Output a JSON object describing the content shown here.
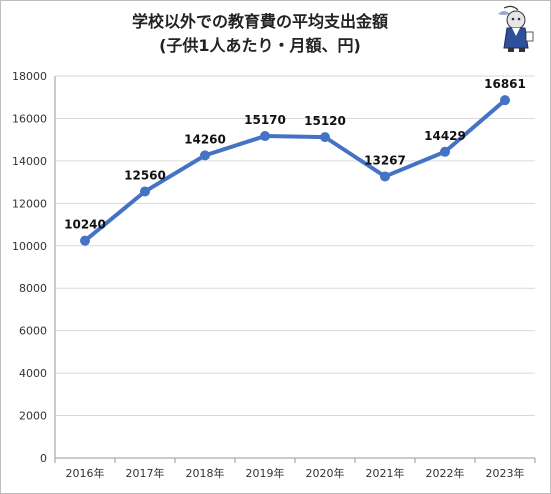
{
  "chart_data": {
    "type": "line",
    "title": "学校以外での教育費の平均支出金額",
    "subtitle": "(子供1人あたり・月額、円)",
    "categories": [
      "2016年",
      "2017年",
      "2018年",
      "2019年",
      "2020年",
      "2021年",
      "2022年",
      "2023年"
    ],
    "series": [
      {
        "values": [
          10240,
          12560,
          14260,
          15170,
          15120,
          13267,
          14429,
          16861
        ]
      }
    ],
    "y_ticks": [
      "0",
      "2000",
      "4000",
      "6000",
      "8000",
      "10000",
      "12000",
      "14000",
      "16000",
      "18000"
    ],
    "ylim": [
      0,
      18000
    ],
    "grid": true,
    "legend": "none",
    "line_color": "#4472C4"
  }
}
